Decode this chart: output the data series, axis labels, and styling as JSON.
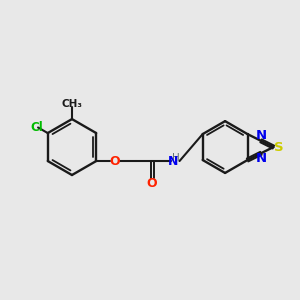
{
  "background_color": "#e8e8e8",
  "bond_color": "#1a1a1a",
  "atom_colors": {
    "Cl": "#00bb00",
    "O": "#ff2200",
    "N": "#0000ee",
    "S": "#cccc00",
    "C": "#1a1a1a",
    "H": "#607070"
  },
  "figsize": [
    3.0,
    3.0
  ],
  "dpi": 100
}
